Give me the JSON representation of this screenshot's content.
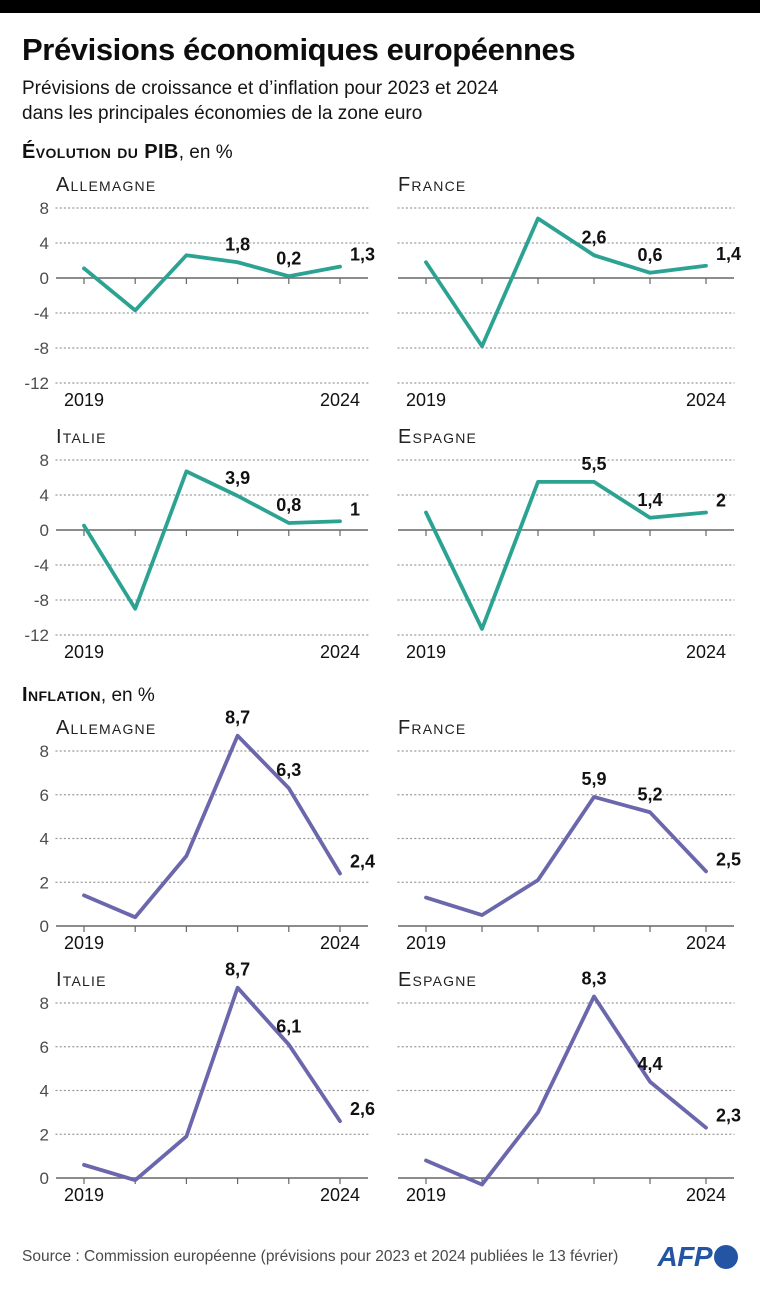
{
  "header": {
    "title": "Prévisions économiques européennes",
    "subtitle_line1": "Prévisions de croissance et d’inflation pour 2023 et 2024",
    "subtitle_line2": "dans les principales économies de la zone euro"
  },
  "sections": {
    "pib": {
      "title": "Évolution du PIB",
      "unit": ", en %"
    },
    "inflation": {
      "title": "Inflation",
      "unit": ", en %"
    }
  },
  "footer": {
    "source": "Source : Commission européenne (prévisions pour 2023 et 2024 publiées le 13 février)",
    "logo_text": "AFP"
  },
  "colors": {
    "topbar": "#000000",
    "gdp_line": "#2ca392",
    "inflation_line": "#6b67ac",
    "afp_blue": "#2355a4"
  },
  "chart_data": [
    {
      "type": "line",
      "group": "pib",
      "title": "Allemagne",
      "x": [
        2019,
        2020,
        2021,
        2022,
        2023,
        2024
      ],
      "xtick_labels": [
        "2019",
        "",
        "",
        "",
        "",
        "2024"
      ],
      "values": [
        1.1,
        -3.7,
        2.6,
        1.8,
        0.2,
        1.3
      ],
      "point_labels": [
        "",
        "",
        "",
        "1,8",
        "0,2",
        "1,3"
      ],
      "ylim": [
        -12,
        8
      ],
      "yticks": [
        8,
        4,
        0,
        -4,
        -8,
        -12
      ],
      "show_ytick_labels": true,
      "grid": "dotted",
      "line_color": "#2ca392"
    },
    {
      "type": "line",
      "group": "pib",
      "title": "France",
      "x": [
        2019,
        2020,
        2021,
        2022,
        2023,
        2024
      ],
      "xtick_labels": [
        "2019",
        "",
        "",
        "",
        "",
        "2024"
      ],
      "values": [
        1.8,
        -7.8,
        6.8,
        2.6,
        0.6,
        1.4
      ],
      "point_labels": [
        "",
        "",
        "",
        "2,6",
        "0,6",
        "1,4"
      ],
      "ylim": [
        -12,
        8
      ],
      "yticks": [
        8,
        4,
        0,
        -4,
        -8,
        -12
      ],
      "show_ytick_labels": false,
      "grid": "dotted",
      "line_color": "#2ca392"
    },
    {
      "type": "line",
      "group": "pib",
      "title": "Italie",
      "x": [
        2019,
        2020,
        2021,
        2022,
        2023,
        2024
      ],
      "xtick_labels": [
        "2019",
        "",
        "",
        "",
        "",
        "2024"
      ],
      "values": [
        0.5,
        -9.0,
        6.7,
        3.9,
        0.8,
        1.0
      ],
      "point_labels": [
        "",
        "",
        "",
        "3,9",
        "0,8",
        "1"
      ],
      "ylim": [
        -12,
        8
      ],
      "yticks": [
        8,
        4,
        0,
        -4,
        -8,
        -12
      ],
      "show_ytick_labels": true,
      "grid": "dotted",
      "line_color": "#2ca392"
    },
    {
      "type": "line",
      "group": "pib",
      "title": "Espagne",
      "x": [
        2019,
        2020,
        2021,
        2022,
        2023,
        2024
      ],
      "xtick_labels": [
        "2019",
        "",
        "",
        "",
        "",
        "2024"
      ],
      "values": [
        2.0,
        -11.3,
        5.5,
        5.5,
        1.4,
        2.0
      ],
      "point_labels": [
        "",
        "",
        "",
        "5,5",
        "1,4",
        "2"
      ],
      "ylim": [
        -12,
        8
      ],
      "yticks": [
        8,
        4,
        0,
        -4,
        -8,
        -12
      ],
      "show_ytick_labels": false,
      "grid": "dotted",
      "line_color": "#2ca392"
    },
    {
      "type": "line",
      "group": "inflation",
      "title": "Allemagne",
      "x": [
        2019,
        2020,
        2021,
        2022,
        2023,
        2024
      ],
      "xtick_labels": [
        "2019",
        "",
        "",
        "",
        "",
        "2024"
      ],
      "values": [
        1.4,
        0.4,
        3.2,
        8.7,
        6.3,
        2.4
      ],
      "point_labels": [
        "",
        "",
        "",
        "8,7",
        "6,3",
        "2,4"
      ],
      "ylim": [
        0,
        8
      ],
      "yticks": [
        8,
        6,
        4,
        2,
        0
      ],
      "show_ytick_labels": true,
      "grid": "dotted",
      "line_color": "#6b67ac"
    },
    {
      "type": "line",
      "group": "inflation",
      "title": "France",
      "x": [
        2019,
        2020,
        2021,
        2022,
        2023,
        2024
      ],
      "xtick_labels": [
        "2019",
        "",
        "",
        "",
        "",
        "2024"
      ],
      "values": [
        1.3,
        0.5,
        2.1,
        5.9,
        5.2,
        2.5
      ],
      "point_labels": [
        "",
        "",
        "",
        "5,9",
        "5,2",
        "2,5"
      ],
      "ylim": [
        0,
        8
      ],
      "yticks": [
        8,
        6,
        4,
        2,
        0
      ],
      "show_ytick_labels": false,
      "grid": "dotted",
      "line_color": "#6b67ac"
    },
    {
      "type": "line",
      "group": "inflation",
      "title": "Italie",
      "x": [
        2019,
        2020,
        2021,
        2022,
        2023,
        2024
      ],
      "xtick_labels": [
        "2019",
        "",
        "",
        "",
        "",
        "2024"
      ],
      "values": [
        0.6,
        -0.1,
        1.9,
        8.7,
        6.1,
        2.6
      ],
      "point_labels": [
        "",
        "",
        "",
        "8,7",
        "6,1",
        "2,6"
      ],
      "ylim": [
        0,
        8
      ],
      "yticks": [
        8,
        6,
        4,
        2,
        0
      ],
      "show_ytick_labels": true,
      "grid": "dotted",
      "line_color": "#6b67ac"
    },
    {
      "type": "line",
      "group": "inflation",
      "title": "Espagne",
      "x": [
        2019,
        2020,
        2021,
        2022,
        2023,
        2024
      ],
      "xtick_labels": [
        "2019",
        "",
        "",
        "",
        "",
        "2024"
      ],
      "values": [
        0.8,
        -0.3,
        3.0,
        8.3,
        4.4,
        2.3
      ],
      "point_labels": [
        "",
        "",
        "",
        "8,3",
        "4,4",
        "2,3"
      ],
      "ylim": [
        0,
        8
      ],
      "yticks": [
        8,
        6,
        4,
        2,
        0
      ],
      "show_ytick_labels": false,
      "grid": "dotted",
      "line_color": "#6b67ac"
    }
  ]
}
